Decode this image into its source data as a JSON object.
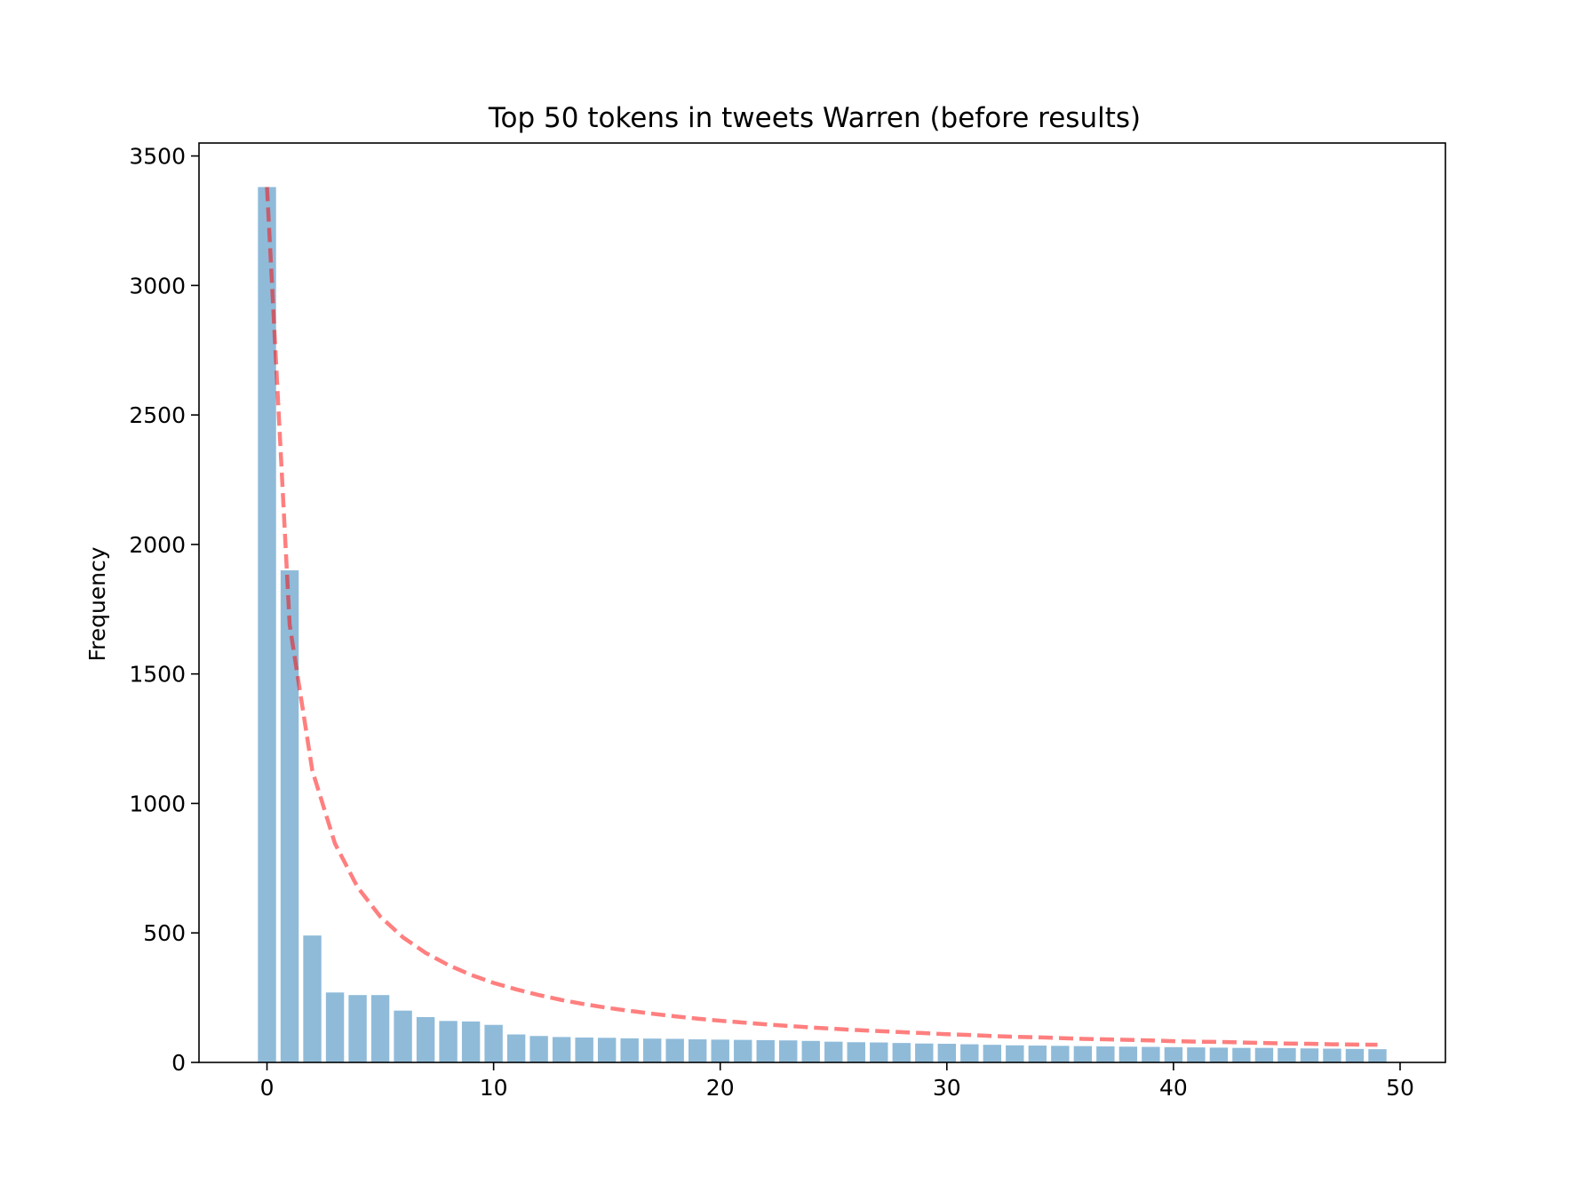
{
  "chart_data": {
    "type": "bar",
    "title": "Top 50 tokens in tweets Warren (before results)",
    "xlabel": "",
    "ylabel": "Frequency",
    "xlim": [
      -3,
      52
    ],
    "ylim": [
      0,
      3550
    ],
    "xticks": [
      0,
      10,
      20,
      30,
      40,
      50
    ],
    "yticks": [
      0,
      500,
      1000,
      1500,
      2000,
      2500,
      3000,
      3500
    ],
    "grid": false,
    "x": [
      0,
      1,
      2,
      3,
      4,
      5,
      6,
      7,
      8,
      9,
      10,
      11,
      12,
      13,
      14,
      15,
      16,
      17,
      18,
      19,
      20,
      21,
      22,
      23,
      24,
      25,
      26,
      27,
      28,
      29,
      30,
      31,
      32,
      33,
      34,
      35,
      36,
      37,
      38,
      39,
      40,
      41,
      42,
      43,
      44,
      45,
      46,
      47,
      48,
      49
    ],
    "series": [
      {
        "type": "bar",
        "color": "#1f77b4",
        "opacity": 0.5,
        "values": [
          3380,
          1900,
          490,
          270,
          260,
          260,
          200,
          175,
          160,
          158,
          145,
          108,
          102,
          98,
          96,
          95,
          93,
          92,
          91,
          89,
          88,
          87,
          86,
          85,
          83,
          80,
          78,
          77,
          75,
          73,
          72,
          70,
          68,
          66,
          65,
          64,
          63,
          62,
          61,
          60,
          59,
          58,
          57,
          56,
          56,
          55,
          54,
          53,
          52,
          51
        ]
      },
      {
        "type": "line",
        "style": "dashed",
        "color": "#ff0000",
        "opacity": 0.5,
        "values": [
          3380,
          1690,
          1127,
          845,
          676,
          563,
          483,
          423,
          376,
          338,
          307,
          282,
          260,
          241,
          225,
          211,
          199,
          188,
          178,
          169,
          161,
          154,
          147,
          141,
          135,
          130,
          125,
          121,
          117,
          113,
          109,
          106,
          102,
          99,
          97,
          94,
          91,
          89,
          87,
          85,
          82,
          80,
          79,
          77,
          75,
          73,
          72,
          70,
          69,
          68
        ]
      }
    ]
  }
}
